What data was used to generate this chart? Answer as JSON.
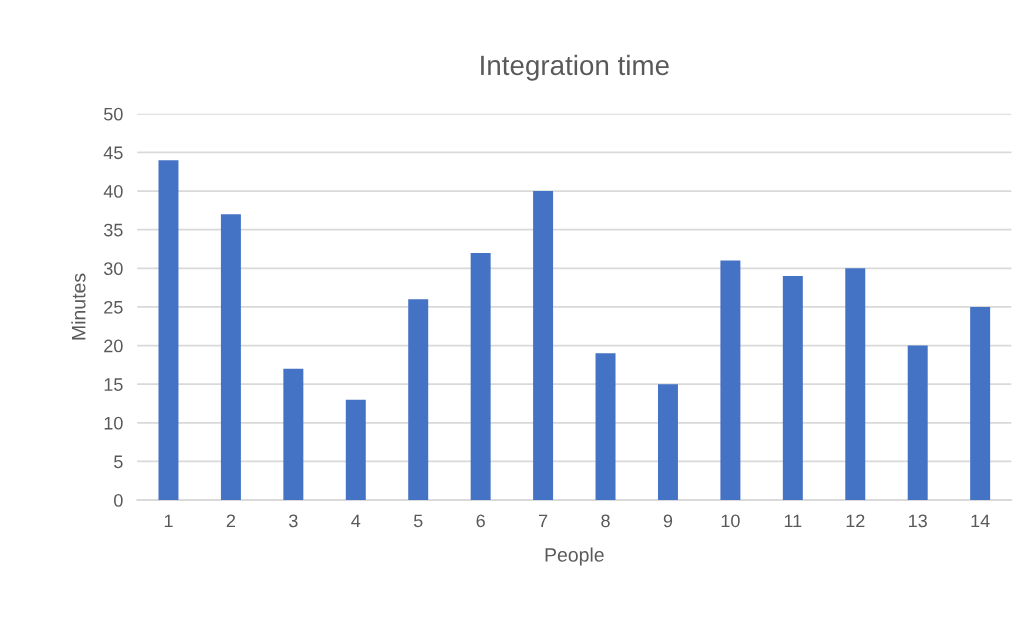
{
  "chart_data": {
    "type": "bar",
    "title": "Integration time",
    "xlabel": "People",
    "ylabel": "Minutes",
    "categories": [
      "1",
      "2",
      "3",
      "4",
      "5",
      "6",
      "7",
      "8",
      "9",
      "10",
      "11",
      "12",
      "13",
      "14"
    ],
    "values": [
      44,
      37,
      17,
      13,
      26,
      32,
      40,
      19,
      15,
      31,
      29,
      30,
      20,
      25
    ],
    "color": "#4472c4",
    "ylim": [
      0,
      50
    ],
    "yticks": [
      0,
      5,
      10,
      15,
      20,
      25,
      30,
      35,
      40,
      45,
      50
    ],
    "grid": "y",
    "legend": false
  }
}
